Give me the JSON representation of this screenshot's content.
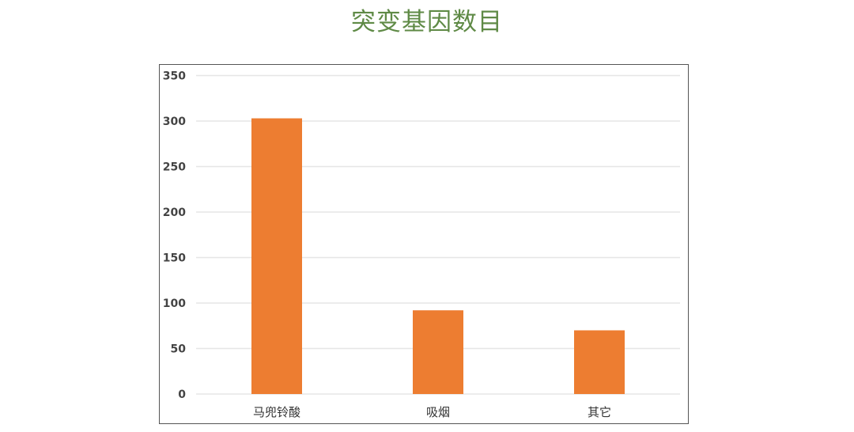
{
  "chart_data": {
    "type": "bar",
    "title": "突变基因数目",
    "categories": [
      "马兜铃酸",
      "吸烟",
      "其它"
    ],
    "values": [
      303,
      92,
      70
    ],
    "ylim": [
      0,
      350
    ],
    "yticks": [
      0,
      50,
      100,
      150,
      200,
      250,
      300,
      350
    ],
    "grid": true,
    "bar_color": "#ed7d31",
    "title_color": "#5f8a46"
  }
}
